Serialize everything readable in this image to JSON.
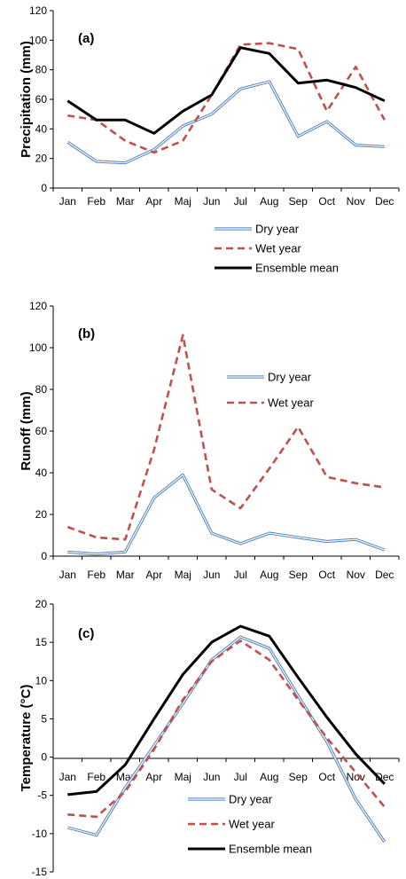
{
  "months": [
    "Jan",
    "Feb",
    "Mar",
    "Apr",
    "Maj",
    "Jun",
    "Jul",
    "Aug",
    "Sep",
    "Oct",
    "Nov",
    "Dec"
  ],
  "colors": {
    "dry": "#4f81bd",
    "wet": "#c0504d",
    "mean": "#000000",
    "axis": "#000000"
  },
  "chart_data": [
    {
      "type": "line",
      "panel_label": "(a)",
      "ylabel": "Precipitation (mm)",
      "xlabel": "",
      "ylim": [
        0,
        120
      ],
      "yticks": [
        0,
        20,
        40,
        60,
        80,
        100,
        120
      ],
      "categories": [
        "Jan",
        "Feb",
        "Mar",
        "Apr",
        "Maj",
        "Jun",
        "Jul",
        "Aug",
        "Sep",
        "Oct",
        "Nov",
        "Dec"
      ],
      "legend_position": "bottom-right",
      "series": [
        {
          "name": "Dry year",
          "key": "dry",
          "style": "double",
          "values": [
            31,
            18,
            17,
            26,
            42,
            50,
            67,
            72,
            35,
            45,
            29,
            28
          ]
        },
        {
          "name": "Wet year",
          "key": "wet",
          "style": "dashed",
          "values": [
            49,
            46,
            32,
            24,
            32,
            63,
            97,
            98,
            94,
            52,
            82,
            46
          ]
        },
        {
          "name": "Ensemble mean",
          "key": "mean",
          "style": "solid",
          "values": [
            59,
            46,
            46,
            37,
            52,
            63,
            95,
            91,
            71,
            73,
            68,
            59
          ]
        }
      ]
    },
    {
      "type": "line",
      "panel_label": "(b)",
      "ylabel": "Runoff (mm)",
      "xlabel": "",
      "ylim": [
        0,
        120
      ],
      "yticks": [
        0,
        20,
        40,
        60,
        80,
        100,
        120
      ],
      "categories": [
        "Jan",
        "Feb",
        "Mar",
        "Apr",
        "Maj",
        "Jun",
        "Jul",
        "Aug",
        "Sep",
        "Oct",
        "Nov",
        "Dec"
      ],
      "legend_position": "top-right",
      "series": [
        {
          "name": "Dry year",
          "key": "dry",
          "style": "double",
          "values": [
            2,
            1,
            2,
            28,
            39,
            11,
            6,
            11,
            9,
            7,
            8,
            3
          ]
        },
        {
          "name": "Wet year",
          "key": "wet",
          "style": "dashed",
          "values": [
            14,
            9,
            8,
            51,
            106,
            32,
            23,
            42,
            62,
            38,
            35,
            33
          ]
        }
      ]
    },
    {
      "type": "line",
      "panel_label": "(c)",
      "ylabel": "Temperature (°C)",
      "xlabel": "",
      "ylim": [
        -15,
        20
      ],
      "yticks": [
        -15,
        -10,
        -5,
        0,
        5,
        10,
        15,
        20
      ],
      "categories": [
        "Jan",
        "Feb",
        "Mar",
        "Apr",
        "Maj",
        "Jun",
        "Jul",
        "Aug",
        "Sep",
        "Oct",
        "Nov",
        "Dec"
      ],
      "legend_position": "bottom-center",
      "series": [
        {
          "name": "Dry year",
          "key": "dry",
          "style": "double",
          "values": [
            -9.2,
            -10.2,
            -4.0,
            1.5,
            7.0,
            12.7,
            15.7,
            14.2,
            8.0,
            2.0,
            -5.5,
            -11.1
          ]
        },
        {
          "name": "Wet year",
          "key": "wet",
          "style": "dashed",
          "values": [
            -7.5,
            -7.8,
            -4.5,
            1.0,
            7.5,
            12.5,
            15.2,
            12.7,
            7.5,
            2.5,
            -2.0,
            -6.5
          ]
        },
        {
          "name": "Ensemble mean",
          "key": "mean",
          "style": "solid",
          "values": [
            -4.9,
            -4.5,
            -1.0,
            5.0,
            10.8,
            15.0,
            17.1,
            15.8,
            10.4,
            5.2,
            0.4,
            -3.5
          ]
        }
      ]
    }
  ]
}
